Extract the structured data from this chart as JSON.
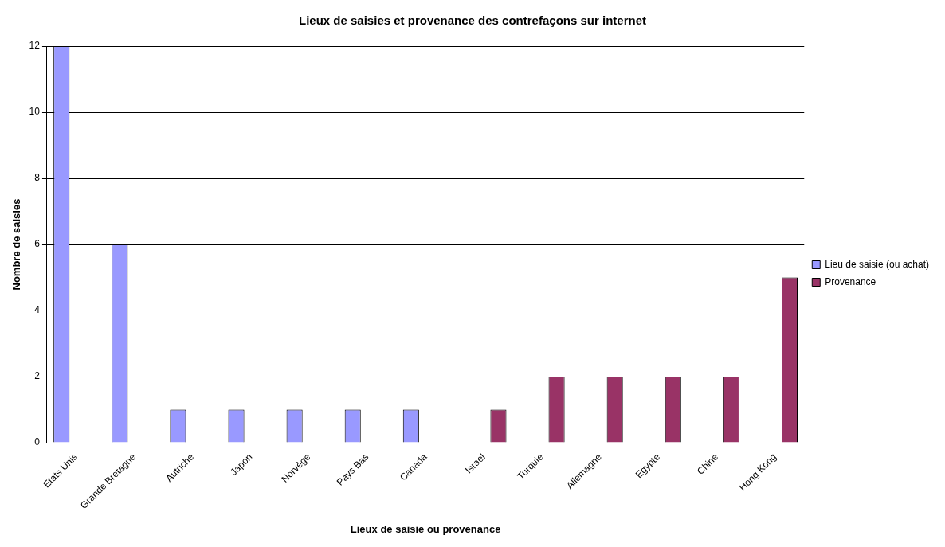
{
  "chart_data": {
    "type": "bar",
    "title": "Lieux de saisies et provenance des contrefaçons sur internet",
    "xlabel": "Lieux de saisie ou provenance",
    "ylabel": "Nombre de saisies",
    "categories": [
      "Etats Unis",
      "Grande Bretagne",
      "Autriche",
      "Japon",
      "Norvège",
      "Pays Bas",
      "Canada",
      "Israel",
      "Turquie",
      "Allemagne",
      "Egypte",
      "Chine",
      "Hong Kong"
    ],
    "series": [
      {
        "name": "Lieu de saisie (ou achat)",
        "color": "#9999ff",
        "values": [
          12,
          6,
          1,
          1,
          1,
          1,
          1,
          null,
          null,
          null,
          null,
          null,
          null
        ]
      },
      {
        "name": "Provenance",
        "color": "#993366",
        "values": [
          null,
          null,
          null,
          null,
          null,
          null,
          null,
          1,
          2,
          2,
          2,
          2,
          5
        ]
      }
    ],
    "ylim": [
      0,
      12
    ],
    "yticks": [
      0,
      2,
      4,
      6,
      8,
      10,
      12
    ],
    "grid": "y",
    "legend": "right"
  }
}
